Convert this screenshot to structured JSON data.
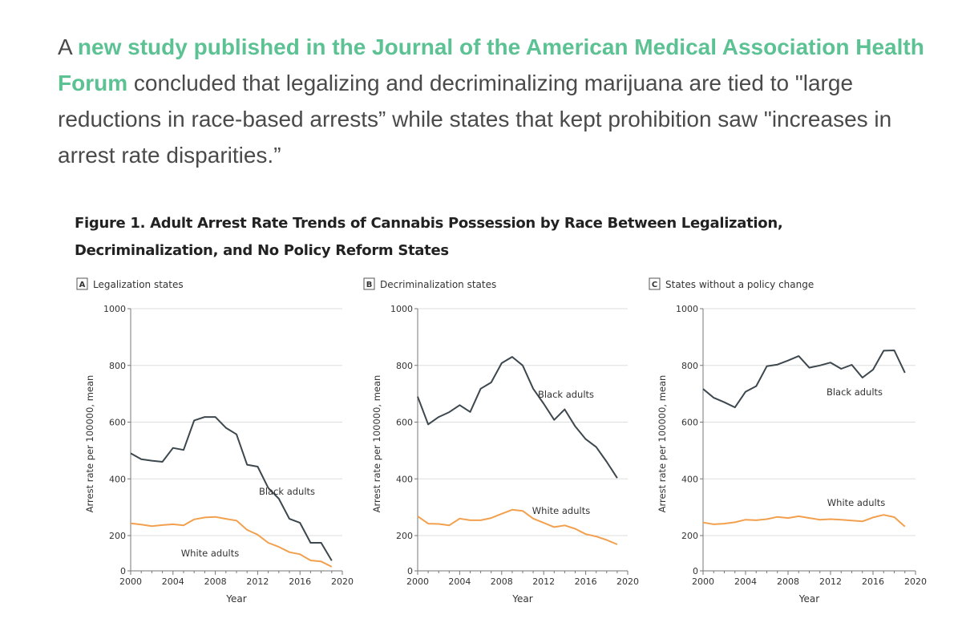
{
  "intro": {
    "prefix": "A ",
    "link_text": "new study published in the Journal of the American Medical Association Health Forum",
    "suffix": " concluded that legalizing and decriminalizing marijuana are tied to \"large reductions in race-based arrests” while states that kept prohibition saw \"increases in arrest rate disparities.”"
  },
  "figure_title": "Figure 1.  Adult Arrest Rate Trends of Cannabis Possession by Race Between Legalization, Decriminalization, and No Policy Reform States",
  "colors": {
    "black_adults": "#3c474e",
    "white_adults": "#f2a04e",
    "link": "#5cc293"
  },
  "chart_data": [
    {
      "type": "line",
      "panel": "A",
      "title": "Legalization states",
      "xlabel": "Year",
      "ylabel": "Arrest rate per 100000, mean",
      "xlim": [
        2000,
        2020
      ],
      "ylim": [
        0,
        1000
      ],
      "xticks": [
        2000,
        2004,
        2008,
        2012,
        2016,
        2020
      ],
      "yticks": [
        0,
        200,
        400,
        600,
        800,
        1000
      ],
      "grid": true,
      "x": [
        2000,
        2001,
        2002,
        2003,
        2004,
        2005,
        2006,
        2007,
        2008,
        2009,
        2010,
        2011,
        2012,
        2013,
        2014,
        2015,
        2016,
        2017,
        2018,
        2019
      ],
      "series": [
        {
          "name": "Black adults",
          "values": [
            490,
            469,
            464,
            460,
            509,
            502,
            606,
            618,
            618,
            580,
            557,
            450,
            443,
            368,
            330,
            259,
            245,
            159,
            159,
            58
          ]
        },
        {
          "name": "White adults",
          "values": [
            243,
            239,
            233,
            237,
            240,
            236,
            257,
            264,
            266,
            259,
            253,
            220,
            203,
            159,
            136,
            106,
            94,
            59,
            53,
            23
          ]
        }
      ]
    },
    {
      "type": "line",
      "panel": "B",
      "title": "Decriminalization states",
      "xlabel": "Year",
      "ylabel": "Arrest rate per 100000, mean",
      "xlim": [
        2000,
        2020
      ],
      "ylim": [
        0,
        1000
      ],
      "xticks": [
        2000,
        2004,
        2008,
        2012,
        2016,
        2020
      ],
      "yticks": [
        0,
        200,
        400,
        600,
        800,
        1000
      ],
      "grid": true,
      "x": [
        2000,
        2001,
        2002,
        2003,
        2004,
        2005,
        2006,
        2007,
        2008,
        2009,
        2010,
        2011,
        2012,
        2013,
        2014,
        2015,
        2016,
        2017,
        2018,
        2019
      ],
      "series": [
        {
          "name": "Black adults",
          "values": [
            690,
            592,
            618,
            635,
            660,
            636,
            718,
            740,
            808,
            830,
            800,
            718,
            665,
            608,
            645,
            585,
            540,
            512,
            460,
            403
          ]
        },
        {
          "name": "White adults",
          "values": [
            268,
            242,
            241,
            236,
            260,
            254,
            254,
            262,
            277,
            291,
            287,
            260,
            245,
            230,
            236,
            224,
            205,
            195,
            175,
            150
          ]
        }
      ]
    },
    {
      "type": "line",
      "panel": "C",
      "title": "States without a policy change",
      "xlabel": "Year",
      "ylabel": "Arrest rate per 100000, mean",
      "xlim": [
        2000,
        2020
      ],
      "ylim": [
        0,
        1000
      ],
      "xticks": [
        2000,
        2004,
        2008,
        2012,
        2016,
        2020
      ],
      "yticks": [
        0,
        200,
        400,
        600,
        800,
        1000
      ],
      "grid": true,
      "x": [
        2000,
        2001,
        2002,
        2003,
        2004,
        2005,
        2006,
        2007,
        2008,
        2009,
        2010,
        2011,
        2012,
        2013,
        2014,
        2015,
        2016,
        2017,
        2018,
        2019
      ],
      "series": [
        {
          "name": "Black adults",
          "values": [
            717,
            686,
            670,
            652,
            707,
            727,
            797,
            803,
            817,
            833,
            792,
            800,
            810,
            788,
            802,
            757,
            785,
            852,
            853,
            774
          ]
        },
        {
          "name": "White adults",
          "values": [
            246,
            240,
            242,
            247,
            256,
            254,
            258,
            266,
            262,
            268,
            262,
            256,
            258,
            256,
            253,
            250,
            264,
            273,
            265,
            232
          ]
        }
      ]
    }
  ]
}
